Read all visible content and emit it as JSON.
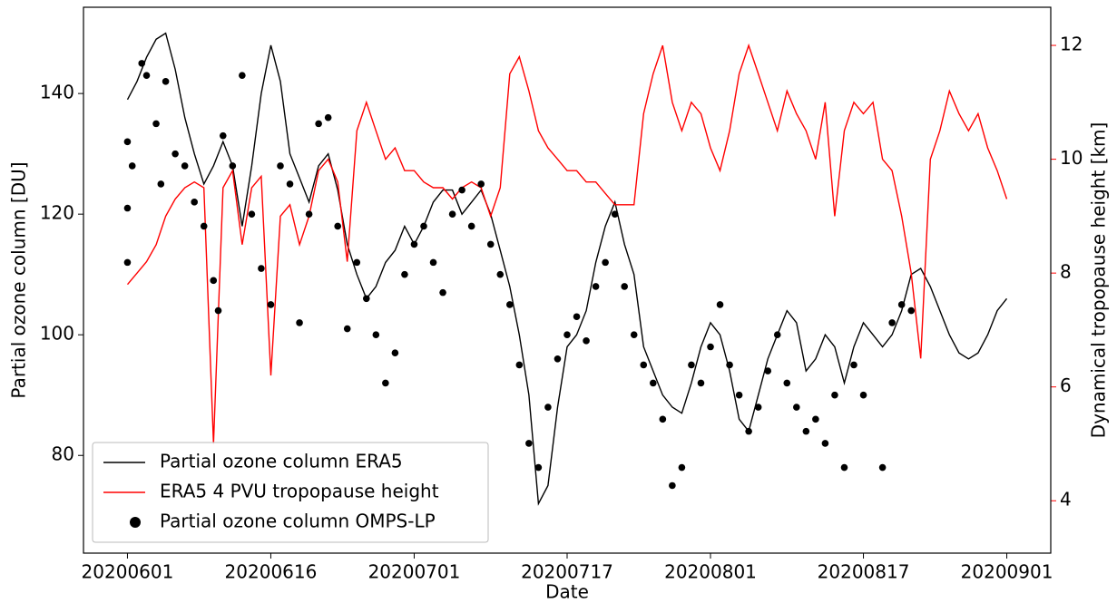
{
  "chart_data": {
    "type": "line",
    "xlabel": "Date",
    "ylabel": "Partial ozone column [DU]",
    "y2label": "Dynamical tropopause height [km]",
    "y2color": "#ff0000",
    "x": [
      0,
      1,
      2,
      3,
      4,
      5,
      6,
      7,
      8,
      9,
      10,
      11,
      12,
      13,
      14,
      15,
      16,
      17,
      18,
      19,
      20,
      21,
      22,
      23,
      24,
      25,
      26,
      27,
      28,
      29,
      30,
      31,
      32,
      33,
      34,
      35,
      36,
      37,
      38,
      39,
      40,
      41,
      42,
      43,
      44,
      45,
      46,
      47,
      48,
      49,
      50,
      51,
      52,
      53,
      54,
      55,
      56,
      57,
      58,
      59,
      60,
      61,
      62,
      63,
      64,
      65,
      66,
      67,
      68,
      69,
      70,
      71,
      72,
      73,
      74,
      75,
      76,
      77,
      78,
      79,
      80,
      81,
      82,
      83,
      84,
      85,
      86,
      87,
      88,
      89,
      90,
      91,
      92
    ],
    "xlim": [
      -4.6,
      96.6
    ],
    "xticks": [
      {
        "value": 0,
        "label": "20200601"
      },
      {
        "value": 15,
        "label": "20200616"
      },
      {
        "value": 30,
        "label": "20200701"
      },
      {
        "value": 46,
        "label": "20200717"
      },
      {
        "value": 61,
        "label": "20200801"
      },
      {
        "value": 77,
        "label": "20200817"
      },
      {
        "value": 92,
        "label": "20200901"
      }
    ],
    "ylim": [
      63.8,
      154.3
    ],
    "yticks": [
      80,
      100,
      120,
      140
    ],
    "y2lim": [
      3.08,
      12.67
    ],
    "y2ticks": [
      4,
      6,
      8,
      10,
      12
    ],
    "legend": "lower left",
    "series": [
      {
        "name": "Partial ozone column ERA5",
        "type": "line",
        "color": "#000000",
        "values": [
          139,
          142,
          146,
          149,
          150,
          144,
          136,
          130,
          125,
          128,
          132,
          128,
          118,
          128,
          140,
          148,
          142,
          130,
          126,
          122,
          128,
          130,
          124,
          115,
          110,
          106,
          108,
          112,
          114,
          118,
          115,
          118,
          122,
          124,
          124,
          120,
          122,
          124,
          120,
          114,
          108,
          100,
          90,
          72,
          75,
          88,
          98,
          100,
          104,
          112,
          118,
          122,
          115,
          110,
          98,
          94,
          90,
          88,
          87,
          92,
          98,
          102,
          100,
          94,
          86,
          84,
          90,
          96,
          100,
          104,
          102,
          94,
          96,
          100,
          98,
          92,
          98,
          102,
          100,
          98,
          100,
          104,
          110,
          111,
          108,
          104,
          100,
          97,
          96,
          97,
          100,
          104,
          106
        ]
      },
      {
        "name": "ERA5 4 PVU tropopause height",
        "type": "line",
        "color": "#ff0000",
        "axis": "y2",
        "values": [
          7.8,
          8.0,
          8.2,
          8.5,
          9.0,
          9.3,
          9.5,
          9.6,
          9.5,
          5.0,
          9.5,
          9.8,
          8.5,
          9.5,
          9.7,
          6.2,
          9.0,
          9.2,
          8.5,
          9.0,
          9.8,
          10.0,
          9.6,
          8.2,
          10.5,
          11.0,
          10.5,
          10.0,
          10.2,
          9.8,
          9.8,
          9.6,
          9.5,
          9.5,
          9.3,
          9.5,
          9.6,
          9.5,
          9.0,
          9.5,
          11.5,
          11.8,
          11.2,
          10.5,
          10.2,
          10.0,
          9.8,
          9.8,
          9.6,
          9.6,
          9.4,
          9.2,
          9.2,
          9.2,
          10.8,
          11.5,
          12.0,
          11.0,
          10.5,
          11.0,
          10.8,
          10.2,
          9.8,
          10.5,
          11.5,
          12.0,
          11.5,
          11.0,
          10.5,
          11.2,
          10.8,
          10.5,
          10.0,
          11.0,
          9.0,
          10.5,
          11.0,
          10.8,
          11.0,
          10.0,
          9.8,
          9.0,
          8.0,
          6.5,
          10.0,
          10.5,
          11.2,
          10.8,
          10.5,
          10.8,
          10.2,
          9.8,
          9.3
        ]
      },
      {
        "name": "Partial ozone column OMPS-LP",
        "type": "scatter",
        "color": "#000000",
        "x": [
          0,
          0,
          0,
          0.5,
          1.5,
          2,
          3,
          3.5,
          4,
          5,
          6,
          7,
          8,
          9,
          9.5,
          10,
          11,
          12,
          13,
          14,
          15,
          16,
          17,
          18,
          19,
          20,
          21,
          22,
          23,
          24,
          25,
          26,
          27,
          28,
          29,
          30,
          31,
          32,
          33,
          34,
          35,
          36,
          37,
          38,
          39,
          40,
          41,
          42,
          43,
          44,
          45,
          46,
          47,
          48,
          49,
          50,
          51,
          52,
          53,
          54,
          55,
          56,
          57,
          58,
          59,
          60,
          61,
          62,
          63,
          64,
          65,
          66,
          67,
          68,
          69,
          70,
          71,
          72,
          73,
          74,
          75,
          76,
          77,
          79,
          80,
          81,
          82
        ],
        "values": [
          132,
          121,
          112,
          128,
          145,
          143,
          135,
          125,
          142,
          130,
          128,
          122,
          118,
          109,
          104,
          133,
          128,
          143,
          120,
          111,
          105,
          128,
          125,
          102,
          120,
          135,
          136,
          118,
          101,
          112,
          106,
          100,
          92,
          97,
          110,
          115,
          118,
          112,
          107,
          120,
          124,
          118,
          125,
          115,
          110,
          105,
          95,
          82,
          78,
          88,
          96,
          100,
          103,
          99,
          108,
          112,
          120,
          108,
          100,
          95,
          92,
          86,
          75,
          78,
          95,
          92,
          98,
          105,
          95,
          90,
          84,
          88,
          94,
          100,
          92,
          88,
          84,
          86,
          82,
          90,
          78,
          95,
          90,
          78,
          102,
          105,
          104
        ]
      }
    ]
  }
}
